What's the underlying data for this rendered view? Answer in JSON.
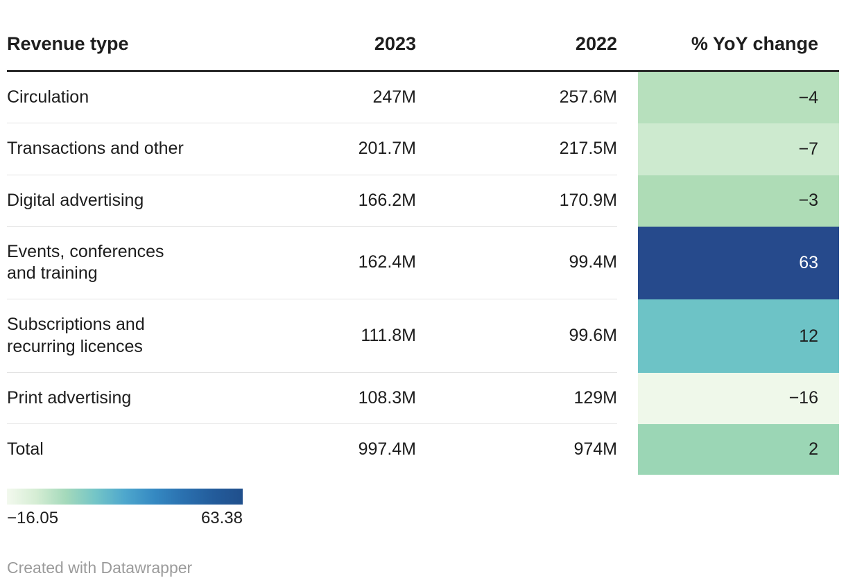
{
  "table": {
    "columns": [
      "Revenue type",
      "2023",
      "2022",
      "% YoY change"
    ],
    "rows": [
      {
        "label_lines": [
          "Circulation"
        ],
        "y2023": "247M",
        "y2022": "257.6M",
        "yoy": "−4",
        "cell_bg": "#b7e0bd",
        "cell_text": "#1d1d1d"
      },
      {
        "label_lines": [
          "Transactions and other"
        ],
        "y2023": "201.7M",
        "y2022": "217.5M",
        "yoy": "−7",
        "cell_bg": "#cdeacf",
        "cell_text": "#1d1d1d"
      },
      {
        "label_lines": [
          "Digital advertising"
        ],
        "y2023": "166.2M",
        "y2022": "170.9M",
        "yoy": "−3",
        "cell_bg": "#aedcb6",
        "cell_text": "#1d1d1d"
      },
      {
        "label_lines": [
          "Events, conferences",
          "and training"
        ],
        "y2023": "162.4M",
        "y2022": "99.4M",
        "yoy": "63",
        "cell_bg": "#264a8c",
        "cell_text": "#ffffff"
      },
      {
        "label_lines": [
          "Subscriptions and",
          "recurring licences"
        ],
        "y2023": "111.8M",
        "y2022": "99.6M",
        "yoy": "12",
        "cell_bg": "#6dc3c6",
        "cell_text": "#1d1d1d"
      },
      {
        "label_lines": [
          "Print advertising"
        ],
        "y2023": "108.3M",
        "y2022": "129M",
        "yoy": "−16",
        "cell_bg": "#eff8ea",
        "cell_text": "#1d1d1d"
      },
      {
        "label_lines": [
          "Total"
        ],
        "y2023": "997.4M",
        "y2022": "974M",
        "yoy": "2",
        "cell_bg": "#9bd6b5",
        "cell_text": "#1d1d1d"
      }
    ]
  },
  "legend": {
    "min_label": "−16.05",
    "max_label": "63.38",
    "gradient": [
      "#f3f9ee",
      "#d5edd4",
      "#a4d9bb",
      "#74c5c7",
      "#4ea7cd",
      "#3589c2",
      "#2a70af",
      "#235c9b",
      "#204f8c"
    ]
  },
  "footer": {
    "credit": "Created with Datawrapper"
  },
  "chart_data": {
    "type": "table",
    "title": "",
    "columns": [
      "Revenue type",
      "2023",
      "2022",
      "% YoY change"
    ],
    "rows": [
      [
        "Circulation",
        "247M",
        "257.6M",
        -4
      ],
      [
        "Transactions and other",
        "201.7M",
        "217.5M",
        -7
      ],
      [
        "Digital advertising",
        "166.2M",
        "170.9M",
        -3
      ],
      [
        "Events, conferences and training",
        "162.4M",
        "99.4M",
        63
      ],
      [
        "Subscriptions and recurring licences",
        "111.8M",
        "99.6M",
        12
      ],
      [
        "Print advertising",
        "108.3M",
        "129M",
        -16
      ],
      [
        "Total",
        "997.4M",
        "974M",
        2
      ]
    ],
    "heatmap_column": "% YoY change",
    "color_scale": {
      "min": -16.05,
      "max": 63.38,
      "palette": "green-teal-blue"
    },
    "legend_position": "bottom-left",
    "credit": "Created with Datawrapper"
  }
}
